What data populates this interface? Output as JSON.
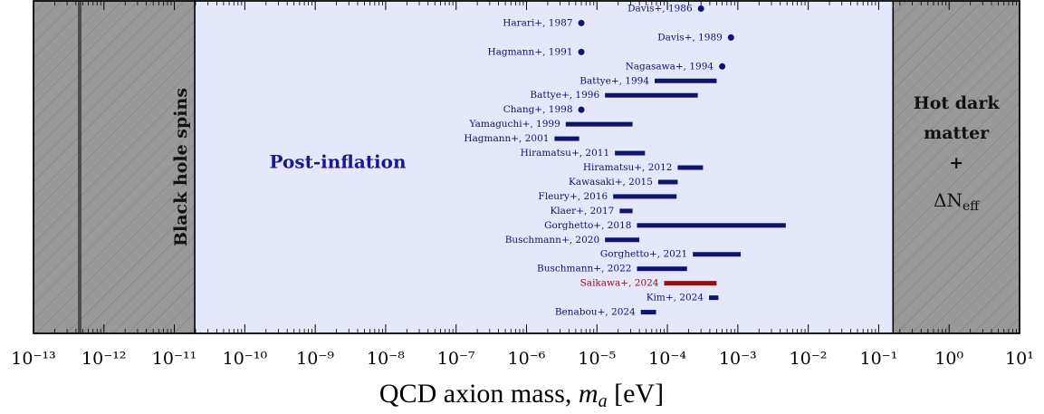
{
  "chart_data": {
    "type": "interval",
    "xscale": "log",
    "xlim": [
      1e-13,
      10
    ],
    "xticks": [
      {
        "value": 1e-13,
        "label": "10⁻¹³"
      },
      {
        "value": 1e-12,
        "label": "10⁻¹²"
      },
      {
        "value": 1e-11,
        "label": "10⁻¹¹"
      },
      {
        "value": 1e-10,
        "label": "10⁻¹⁰"
      },
      {
        "value": 1e-09,
        "label": "10⁻⁹"
      },
      {
        "value": 1e-08,
        "label": "10⁻⁸"
      },
      {
        "value": 1e-07,
        "label": "10⁻⁷"
      },
      {
        "value": 1e-06,
        "label": "10⁻⁶"
      },
      {
        "value": 1e-05,
        "label": "10⁻⁵"
      },
      {
        "value": 0.0001,
        "label": "10⁻⁴"
      },
      {
        "value": 0.001,
        "label": "10⁻³"
      },
      {
        "value": 0.01,
        "label": "10⁻²"
      },
      {
        "value": 0.1,
        "label": "10⁻¹"
      },
      {
        "value": 1,
        "label": "10⁰"
      },
      {
        "value": 10,
        "label": "10¹"
      }
    ],
    "minor_ticks": true,
    "xlabel": [
      "QCD axion mass, ",
      "m",
      "a",
      " [eV]"
    ],
    "regions": [
      {
        "label": "Black hole spins",
        "xlim": [
          1e-13,
          1.95e-11
        ],
        "style": "hatched"
      },
      {
        "label": "Post-inflation",
        "xlim": [
          1.95e-11,
          0.16
        ],
        "style": "plain"
      },
      {
        "label": [
          "Hot dark",
          "matter",
          "+"
        ],
        "label_math": [
          "ΔN",
          "eff"
        ],
        "xlim": [
          0.16,
          10
        ],
        "style": "hatched"
      }
    ],
    "categories": [
      "Davis+, 1986",
      "Harari+, 1987",
      "Davis+, 1989",
      "Hagmann+, 1991",
      "Nagasawa+, 1994",
      "Battye+, 1994",
      "Battye+, 1996",
      "Chang+, 1998",
      "Yamaguchi+, 1999",
      "Hagmann+, 2001",
      "Hiramatsu+, 2011",
      "Hiramatsu+, 2012",
      "Kawasaki+, 2015",
      "Fleury+, 2016",
      "Klaer+, 2017",
      "Gorghetto+, 2018",
      "Buschmann+, 2020",
      "Gorghetto+, 2021",
      "Buschmann+, 2022",
      "Saikawa+, 2024",
      "Kim+, 2024",
      "Benabou+, 2024"
    ],
    "values": [
      0.0003,
      6e-06,
      0.0008,
      6e-06,
      0.0006,
      [
        6.6e-05,
        0.0005
      ],
      [
        1.3e-05,
        0.00027
      ],
      6e-06,
      [
        3.6e-06,
        3.2e-05
      ],
      [
        2.5e-06,
        5.6e-06
      ],
      [
        1.8e-05,
        4.8e-05
      ],
      [
        0.00014,
        0.00032
      ],
      [
        7.4e-05,
        0.00014
      ],
      [
        1.7e-05,
        0.000135
      ],
      [
        2.1e-05,
        3.2e-05
      ],
      [
        3.7e-05,
        0.0048
      ],
      [
        1.3e-05,
        4e-05
      ],
      [
        0.00023,
        0.0011
      ],
      [
        3.7e-05,
        0.00019
      ],
      [
        9e-05,
        0.0005
      ],
      [
        0.00039,
        0.00053
      ],
      [
        4.2e-05,
        6.9e-05
      ]
    ],
    "colors": [
      "#0d1470",
      "#0d1470",
      "#0d1470",
      "#0d1470",
      "#0d1470",
      "#0d1470",
      "#0d1470",
      "#0d1470",
      "#0d1470",
      "#0d1470",
      "#0d1470",
      "#0d1470",
      "#0d1470",
      "#0d1470",
      "#0d1470",
      "#0d1470",
      "#0d1470",
      "#0d1470",
      "#0d1470",
      "#8a1212",
      "#0d1470",
      "#0d1470"
    ]
  }
}
